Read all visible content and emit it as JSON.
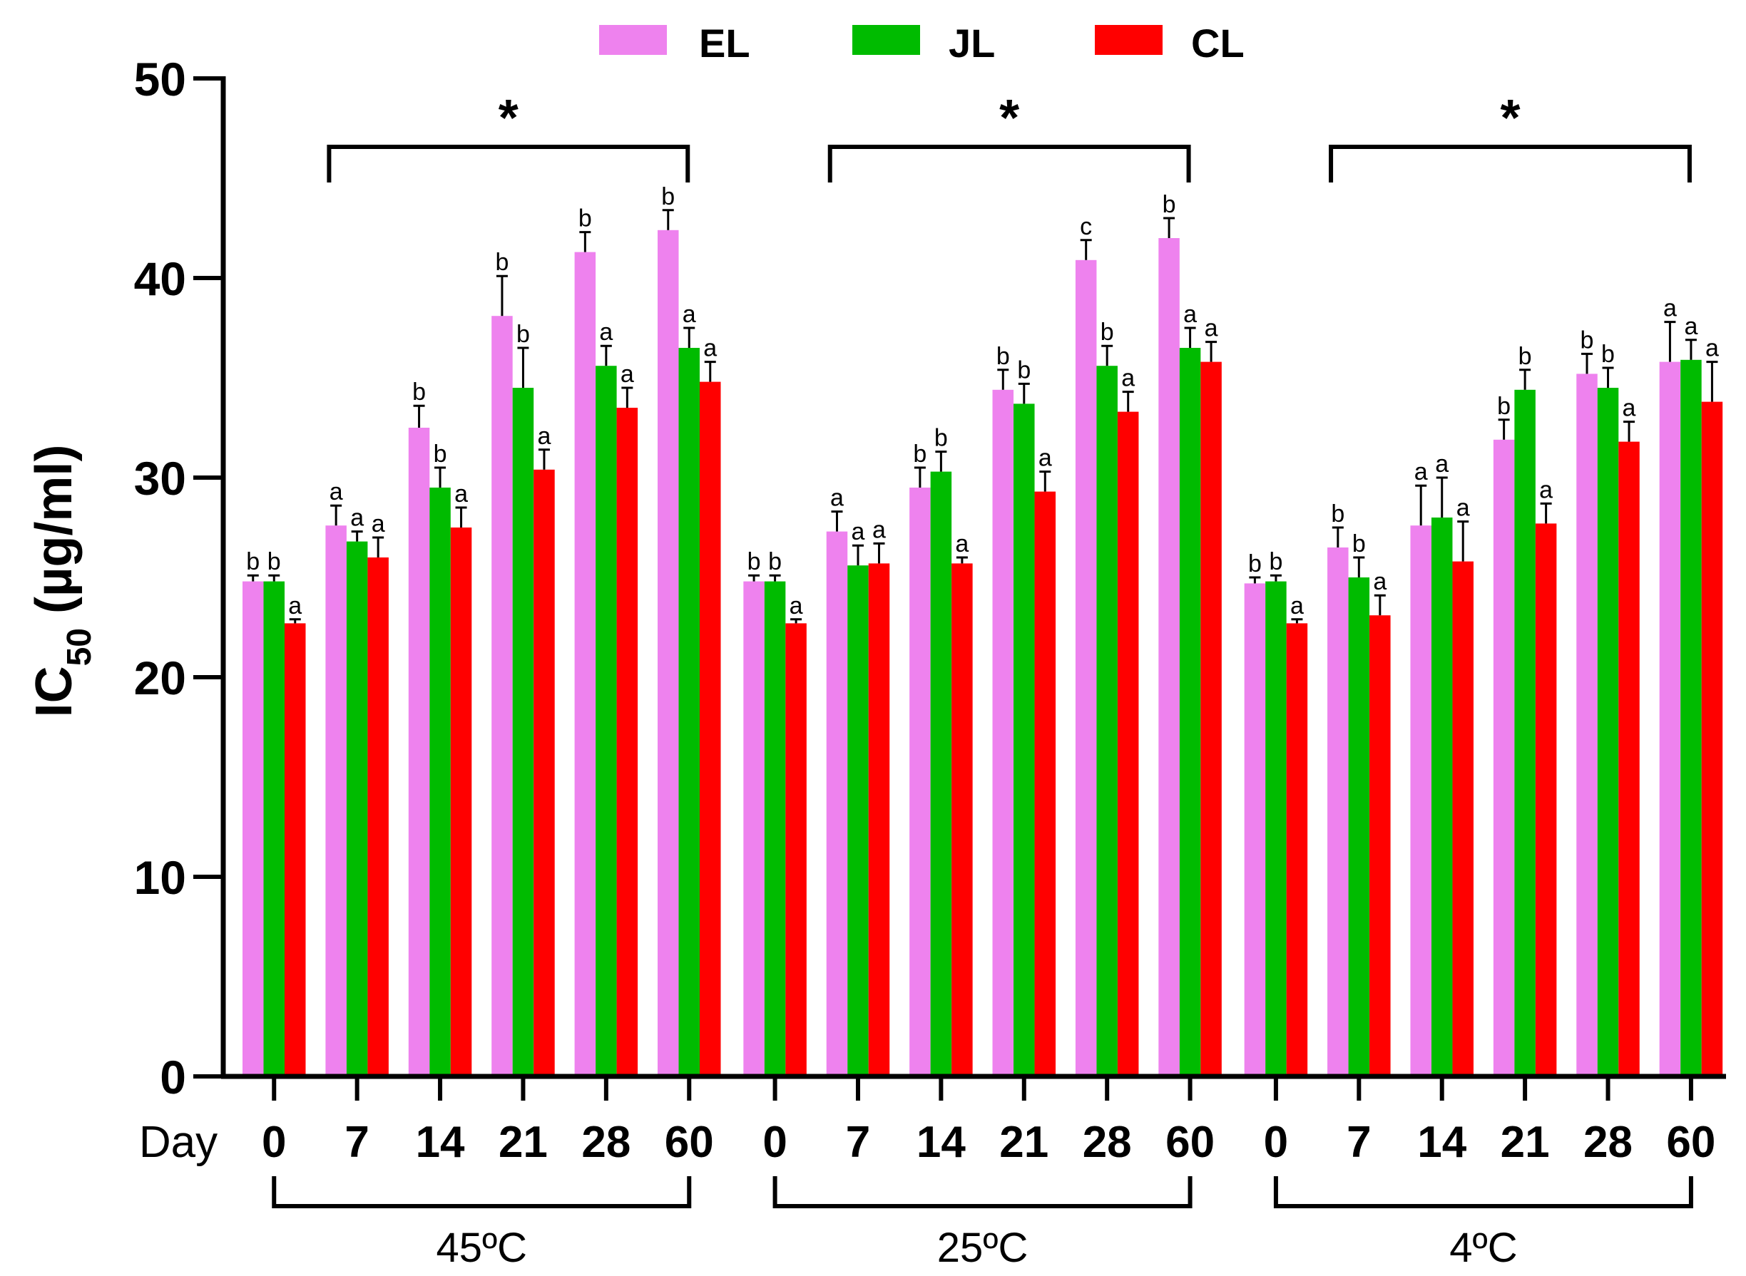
{
  "chart_data": {
    "type": "bar",
    "ylabel_main": "IC",
    "ylabel_sub": "50",
    "ylabel_unit": " (µg/ml)",
    "ylim": [
      0,
      50
    ],
    "yticks": [
      "0",
      "10",
      "20",
      "30",
      "40",
      "50"
    ],
    "x_prefix": "Day",
    "days": [
      "0",
      "7",
      "14",
      "21",
      "28",
      "60"
    ],
    "groups": [
      "45ºC",
      "25ºC",
      "4ºC"
    ],
    "significance_marker": "*",
    "series": [
      {
        "name": "EL",
        "color": "#EE82EE"
      },
      {
        "name": "JL",
        "color": "#00BB00"
      },
      {
        "name": "CL",
        "color": "#FF0000"
      }
    ],
    "data": [
      {
        "group": "45ºC",
        "EL": {
          "values": [
            24.8,
            27.6,
            32.5,
            38.1,
            41.3,
            42.4
          ],
          "errors": [
            0.3,
            1.0,
            1.1,
            2.0,
            1.0,
            1.0
          ],
          "letters": [
            "b",
            "a",
            "b",
            "b",
            "b",
            "b"
          ]
        },
        "JL": {
          "values": [
            24.8,
            26.8,
            29.5,
            34.5,
            35.6,
            36.5
          ],
          "errors": [
            0.3,
            0.5,
            1.0,
            2.0,
            1.0,
            1.0
          ],
          "letters": [
            "b",
            "a",
            "b",
            "b",
            "a",
            "a"
          ]
        },
        "CL": {
          "values": [
            22.7,
            26.0,
            27.5,
            30.4,
            33.5,
            34.8
          ],
          "errors": [
            0.2,
            1.0,
            1.0,
            1.0,
            1.0,
            1.0
          ],
          "letters": [
            "a",
            "a",
            "a",
            "a",
            "a",
            "a"
          ]
        }
      },
      {
        "group": "25ºC",
        "EL": {
          "values": [
            24.8,
            27.3,
            29.5,
            34.4,
            40.9,
            42.0
          ],
          "errors": [
            0.3,
            1.0,
            1.0,
            1.0,
            1.0,
            1.0
          ],
          "letters": [
            "b",
            "a",
            "b",
            "b",
            "c",
            "b"
          ]
        },
        "JL": {
          "values": [
            24.8,
            25.6,
            30.3,
            33.7,
            35.6,
            36.5
          ],
          "errors": [
            0.3,
            1.0,
            1.0,
            1.0,
            1.0,
            1.0
          ],
          "letters": [
            "b",
            "a",
            "b",
            "b",
            "b",
            "a"
          ]
        },
        "CL": {
          "values": [
            22.7,
            25.7,
            25.7,
            29.3,
            33.3,
            35.8
          ],
          "errors": [
            0.2,
            1.0,
            0.3,
            1.0,
            1.0,
            1.0
          ],
          "letters": [
            "a",
            "a",
            "a",
            "a",
            "a",
            "a"
          ]
        }
      },
      {
        "group": "4ºC",
        "EL": {
          "values": [
            24.7,
            26.5,
            27.6,
            31.9,
            35.2,
            35.8
          ],
          "errors": [
            0.3,
            1.0,
            2.0,
            1.0,
            1.0,
            2.0
          ],
          "letters": [
            "b",
            "b",
            "a",
            "b",
            "b",
            "a"
          ]
        },
        "JL": {
          "values": [
            24.8,
            25.0,
            28.0,
            34.4,
            34.5,
            35.9
          ],
          "errors": [
            0.3,
            1.0,
            2.0,
            1.0,
            1.0,
            1.0
          ],
          "letters": [
            "b",
            "b",
            "a",
            "b",
            "b",
            "a"
          ]
        },
        "CL": {
          "values": [
            22.7,
            23.1,
            25.8,
            27.7,
            31.8,
            33.8
          ],
          "errors": [
            0.2,
            1.0,
            2.0,
            1.0,
            1.0,
            2.0
          ],
          "letters": [
            "a",
            "a",
            "a",
            "a",
            "a",
            "a"
          ]
        }
      }
    ]
  }
}
